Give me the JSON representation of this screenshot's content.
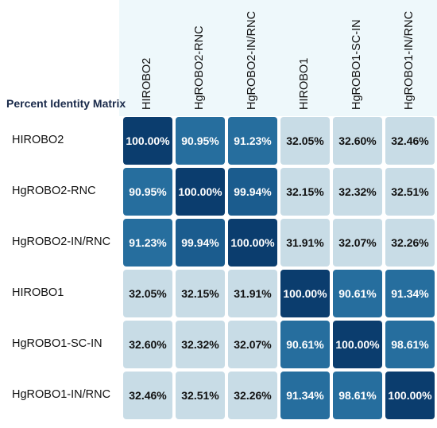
{
  "chart_data": {
    "type": "heatmap",
    "title": "Percent Identity Matrix",
    "x_labels": [
      "HIROBO2",
      "HgROBO2-RNC",
      "HgROBO2-IN/RNC",
      "HIROBO1",
      "HgROBO1-SC-IN",
      "HgROBO1-IN/RNC"
    ],
    "y_labels": [
      "HIROBO2",
      "HgROBO2-RNC",
      "HgROBO2-IN/RNC",
      "HIROBO1",
      "HgROBO1-SC-IN",
      "HgROBO1-IN/RNC"
    ],
    "values": [
      [
        100.0,
        90.95,
        91.23,
        32.05,
        32.6,
        32.46
      ],
      [
        90.95,
        100.0,
        99.94,
        32.15,
        32.32,
        32.51
      ],
      [
        91.23,
        99.94,
        100.0,
        31.91,
        32.07,
        32.26
      ],
      [
        32.05,
        32.15,
        31.91,
        100.0,
        90.61,
        91.34
      ],
      [
        32.6,
        32.32,
        32.07,
        90.61,
        100.0,
        98.61
      ],
      [
        32.46,
        32.51,
        32.26,
        91.34,
        98.61,
        100.0
      ]
    ],
    "value_format": "%",
    "colors": {
      "full": "#0b3d6e",
      "high_dark": "#1b5c8e",
      "high_light": "#266e9e",
      "low": "#c8dce6",
      "text_dark_bg": "#ffffff",
      "text_light_bg": "#111111"
    }
  }
}
